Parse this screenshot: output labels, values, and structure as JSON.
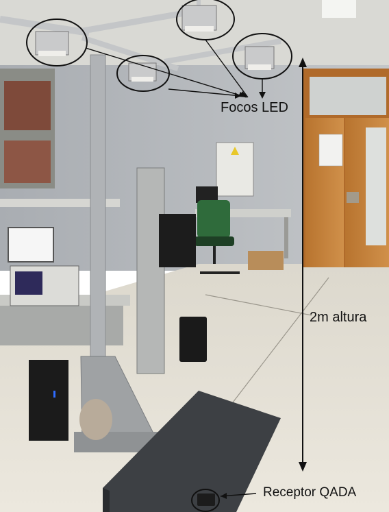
{
  "annotations": {
    "focos_led": "Focos LED",
    "altura": "2m altura",
    "receptor": "Receptor QADA"
  },
  "colors": {
    "wall": "#b9bcc0",
    "floor": "#e6e1d6",
    "ceiling": "#d9d9d4",
    "door_wood": "#c8863f",
    "optical_table": "#3d4044",
    "chair": "#2f6b3b",
    "annotation_ink": "#111111"
  }
}
